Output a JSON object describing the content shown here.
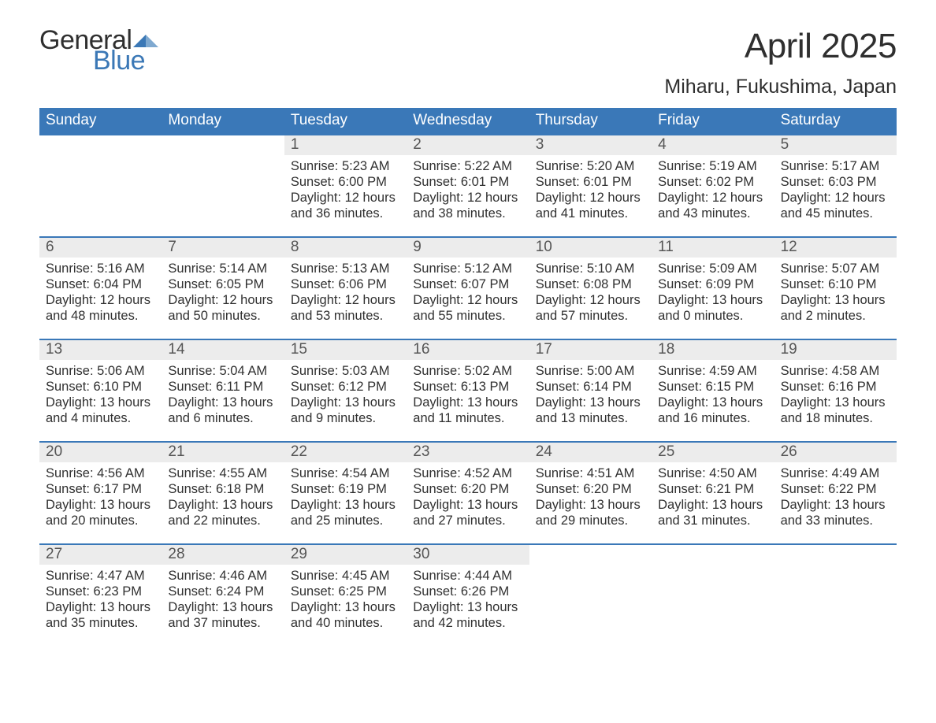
{
  "brand": {
    "general": "General",
    "blue": "Blue"
  },
  "colors": {
    "brand_dark": "#2f2f2f",
    "brand_blue": "#3b78b6",
    "header_blue": "#3a78b8",
    "row_separator": "#3a78b8",
    "daynum_bg": "#ececec",
    "text": "#303030",
    "daynum_text": "#555555",
    "page_bg": "#ffffff"
  },
  "typography": {
    "title_fontsize": 44,
    "location_fontsize": 25,
    "weekday_fontsize": 19,
    "daynum_fontsize": 19,
    "body_fontsize": 16.5,
    "logo_fontsize": 34
  },
  "title": "April 2025",
  "location": "Miharu, Fukushima, Japan",
  "weekdays": [
    "Sunday",
    "Monday",
    "Tuesday",
    "Wednesday",
    "Thursday",
    "Friday",
    "Saturday"
  ],
  "calendar": {
    "type": "table",
    "columns": 7,
    "weeks": [
      [
        {
          "day": "",
          "sunrise": "",
          "sunset": "",
          "daylight": ""
        },
        {
          "day": "",
          "sunrise": "",
          "sunset": "",
          "daylight": ""
        },
        {
          "day": "1",
          "sunrise": "5:23 AM",
          "sunset": "6:00 PM",
          "daylight": "12 hours and 36 minutes."
        },
        {
          "day": "2",
          "sunrise": "5:22 AM",
          "sunset": "6:01 PM",
          "daylight": "12 hours and 38 minutes."
        },
        {
          "day": "3",
          "sunrise": "5:20 AM",
          "sunset": "6:01 PM",
          "daylight": "12 hours and 41 minutes."
        },
        {
          "day": "4",
          "sunrise": "5:19 AM",
          "sunset": "6:02 PM",
          "daylight": "12 hours and 43 minutes."
        },
        {
          "day": "5",
          "sunrise": "5:17 AM",
          "sunset": "6:03 PM",
          "daylight": "12 hours and 45 minutes."
        }
      ],
      [
        {
          "day": "6",
          "sunrise": "5:16 AM",
          "sunset": "6:04 PM",
          "daylight": "12 hours and 48 minutes."
        },
        {
          "day": "7",
          "sunrise": "5:14 AM",
          "sunset": "6:05 PM",
          "daylight": "12 hours and 50 minutes."
        },
        {
          "day": "8",
          "sunrise": "5:13 AM",
          "sunset": "6:06 PM",
          "daylight": "12 hours and 53 minutes."
        },
        {
          "day": "9",
          "sunrise": "5:12 AM",
          "sunset": "6:07 PM",
          "daylight": "12 hours and 55 minutes."
        },
        {
          "day": "10",
          "sunrise": "5:10 AM",
          "sunset": "6:08 PM",
          "daylight": "12 hours and 57 minutes."
        },
        {
          "day": "11",
          "sunrise": "5:09 AM",
          "sunset": "6:09 PM",
          "daylight": "13 hours and 0 minutes."
        },
        {
          "day": "12",
          "sunrise": "5:07 AM",
          "sunset": "6:10 PM",
          "daylight": "13 hours and 2 minutes."
        }
      ],
      [
        {
          "day": "13",
          "sunrise": "5:06 AM",
          "sunset": "6:10 PM",
          "daylight": "13 hours and 4 minutes."
        },
        {
          "day": "14",
          "sunrise": "5:04 AM",
          "sunset": "6:11 PM",
          "daylight": "13 hours and 6 minutes."
        },
        {
          "day": "15",
          "sunrise": "5:03 AM",
          "sunset": "6:12 PM",
          "daylight": "13 hours and 9 minutes."
        },
        {
          "day": "16",
          "sunrise": "5:02 AM",
          "sunset": "6:13 PM",
          "daylight": "13 hours and 11 minutes."
        },
        {
          "day": "17",
          "sunrise": "5:00 AM",
          "sunset": "6:14 PM",
          "daylight": "13 hours and 13 minutes."
        },
        {
          "day": "18",
          "sunrise": "4:59 AM",
          "sunset": "6:15 PM",
          "daylight": "13 hours and 16 minutes."
        },
        {
          "day": "19",
          "sunrise": "4:58 AM",
          "sunset": "6:16 PM",
          "daylight": "13 hours and 18 minutes."
        }
      ],
      [
        {
          "day": "20",
          "sunrise": "4:56 AM",
          "sunset": "6:17 PM",
          "daylight": "13 hours and 20 minutes."
        },
        {
          "day": "21",
          "sunrise": "4:55 AM",
          "sunset": "6:18 PM",
          "daylight": "13 hours and 22 minutes."
        },
        {
          "day": "22",
          "sunrise": "4:54 AM",
          "sunset": "6:19 PM",
          "daylight": "13 hours and 25 minutes."
        },
        {
          "day": "23",
          "sunrise": "4:52 AM",
          "sunset": "6:20 PM",
          "daylight": "13 hours and 27 minutes."
        },
        {
          "day": "24",
          "sunrise": "4:51 AM",
          "sunset": "6:20 PM",
          "daylight": "13 hours and 29 minutes."
        },
        {
          "day": "25",
          "sunrise": "4:50 AM",
          "sunset": "6:21 PM",
          "daylight": "13 hours and 31 minutes."
        },
        {
          "day": "26",
          "sunrise": "4:49 AM",
          "sunset": "6:22 PM",
          "daylight": "13 hours and 33 minutes."
        }
      ],
      [
        {
          "day": "27",
          "sunrise": "4:47 AM",
          "sunset": "6:23 PM",
          "daylight": "13 hours and 35 minutes."
        },
        {
          "day": "28",
          "sunrise": "4:46 AM",
          "sunset": "6:24 PM",
          "daylight": "13 hours and 37 minutes."
        },
        {
          "day": "29",
          "sunrise": "4:45 AM",
          "sunset": "6:25 PM",
          "daylight": "13 hours and 40 minutes."
        },
        {
          "day": "30",
          "sunrise": "4:44 AM",
          "sunset": "6:26 PM",
          "daylight": "13 hours and 42 minutes."
        },
        {
          "day": "",
          "sunrise": "",
          "sunset": "",
          "daylight": ""
        },
        {
          "day": "",
          "sunrise": "",
          "sunset": "",
          "daylight": ""
        },
        {
          "day": "",
          "sunrise": "",
          "sunset": "",
          "daylight": ""
        }
      ]
    ]
  },
  "labels": {
    "sunrise": "Sunrise:",
    "sunset": "Sunset:",
    "daylight": "Daylight:"
  }
}
